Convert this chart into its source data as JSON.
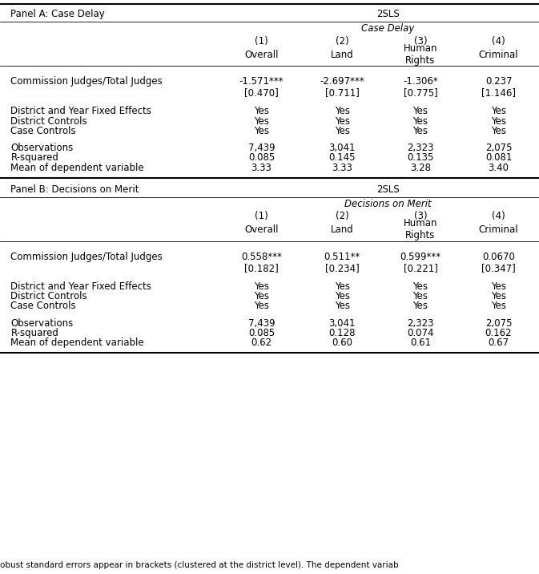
{
  "figsize": [
    6.73,
    7.16
  ],
  "dpi": 100,
  "panel_a_label": "Panel A: Case Delay",
  "panel_b_label": "Panel B: Decisions on Merit",
  "method_label": "2SLS",
  "panel_a_italic": "Case Delay",
  "panel_b_italic": "Decisions on Merit",
  "col_nums": [
    "(1)",
    "(2)",
    "(3)",
    "(4)"
  ],
  "col_names": [
    "Overall",
    "Land",
    "Human\nRights",
    "Criminal"
  ],
  "row_label_coeff": "Commission Judges/Total Judges",
  "panel_a": {
    "coeff": [
      "-1.571***",
      "-2.697***",
      "-1.306*",
      "0.237"
    ],
    "se": [
      "[0.470]",
      "[0.711]",
      "[0.775]",
      "[1.146]"
    ],
    "fixed_effects": [
      "Yes",
      "Yes",
      "Yes",
      "Yes"
    ],
    "district_controls": [
      "Yes",
      "Yes",
      "Yes",
      "Yes"
    ],
    "case_controls": [
      "Yes",
      "Yes",
      "Yes",
      "Yes"
    ],
    "observations": [
      "7,439",
      "3,041",
      "2,323",
      "2,075"
    ],
    "rsquared": [
      "0.085",
      "0.145",
      "0.135",
      "0.081"
    ],
    "mean_dep": [
      "3.33",
      "3.33",
      "3.28",
      "3.40"
    ]
  },
  "panel_b": {
    "coeff": [
      "0.558***",
      "0.511**",
      "0.599***",
      "0.0670"
    ],
    "se": [
      "[0.182]",
      "[0.234]",
      "[0.221]",
      "[0.347]"
    ],
    "fixed_effects": [
      "Yes",
      "Yes",
      "Yes",
      "Yes"
    ],
    "district_controls": [
      "Yes",
      "Yes",
      "Yes",
      "Yes"
    ],
    "case_controls": [
      "Yes",
      "Yes",
      "Yes",
      "Yes"
    ],
    "observations": [
      "7,439",
      "3,041",
      "2,323",
      "2,075"
    ],
    "rsquared": [
      "0.085",
      "0.128",
      "0.074",
      "0.162"
    ],
    "mean_dep": [
      "0.62",
      "0.60",
      "0.61",
      "0.67"
    ]
  },
  "row_labels": [
    "District and Year Fixed Effects",
    "District Controls",
    "Case Controls",
    "Observations",
    "R-squared",
    "Mean of dependent variable"
  ],
  "footnote": "obust standard errors appear in brackets (clustered at the district level). The dependent variab"
}
